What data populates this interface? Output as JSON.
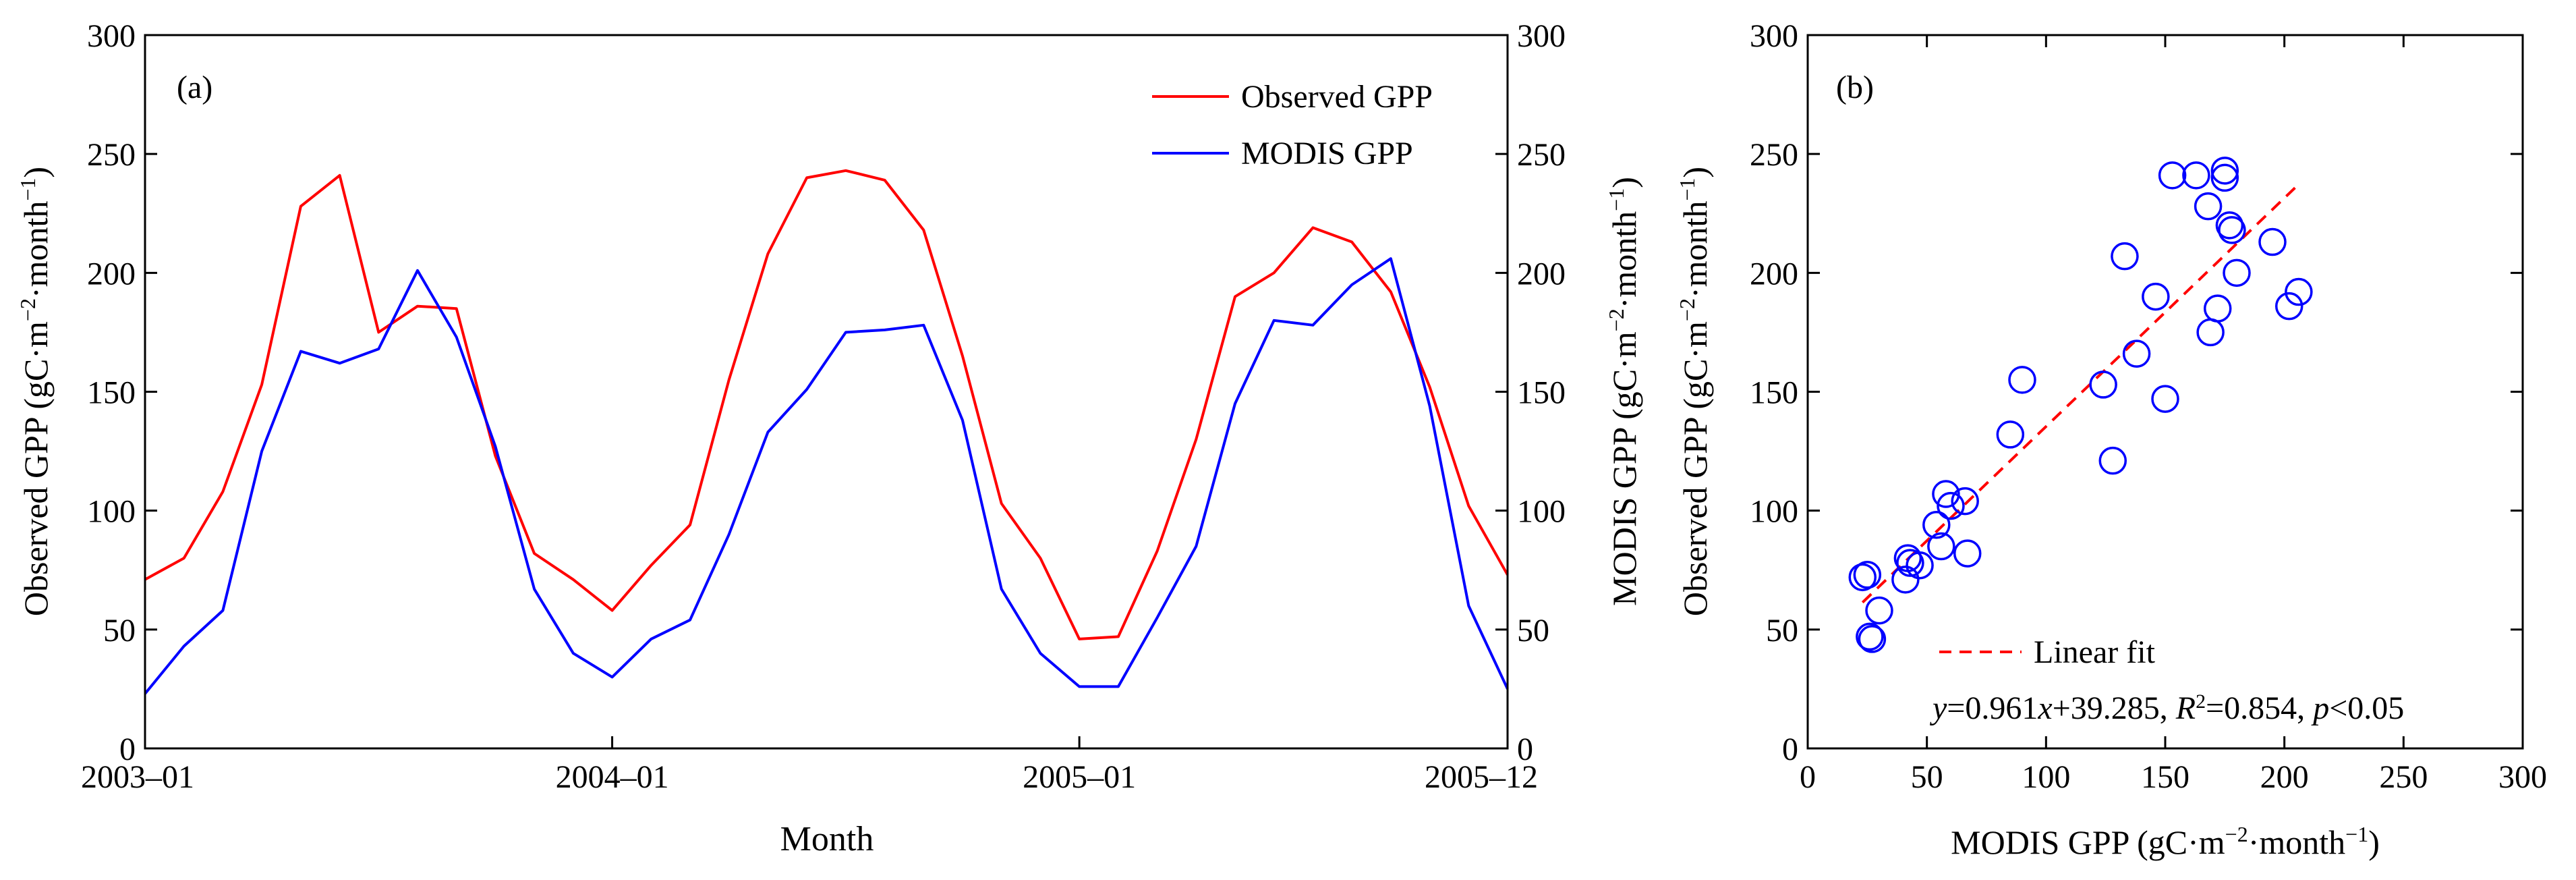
{
  "chart_data": [
    {
      "type": "line",
      "panel_label": "(a)",
      "xlabel": "Month",
      "ylabel_left": {
        "main": "Observed GPP (gC·m",
        "exp1": "−2",
        "mid": "·month",
        "exp2": "−1",
        "end": ")"
      },
      "ylabel_right": {
        "main": "MODIS GPP (gC·m",
        "exp1": "−2",
        "mid": "·month",
        "exp2": "−1",
        "end": ")"
      },
      "ylim": [
        0,
        300
      ],
      "yticks": [
        0,
        50,
        100,
        150,
        200,
        250,
        300
      ],
      "xticks": [
        {
          "index": 0,
          "label": "2003–01"
        },
        {
          "index": 12,
          "label": "2004–01"
        },
        {
          "index": 24,
          "label": "2005–01"
        },
        {
          "index": 35,
          "label": "2005–12"
        }
      ],
      "legend_position": "top-right",
      "series": [
        {
          "name": "Observed GPP",
          "color": "#ff0000",
          "values": [
            71,
            80,
            108,
            153,
            228,
            241,
            175,
            186,
            185,
            123,
            82,
            71,
            58,
            77,
            94,
            155,
            208,
            240,
            243,
            239,
            218,
            165,
            103,
            80,
            46,
            47,
            83,
            130,
            190,
            200,
            219,
            213,
            192,
            152,
            102,
            73
          ]
        },
        {
          "name": "MODIS GPP",
          "color": "#0000ff",
          "values": [
            23,
            43,
            58,
            125,
            167,
            162,
            168,
            201,
            173,
            127,
            67,
            40,
            30,
            46,
            54,
            90,
            133,
            151,
            175,
            176,
            178,
            138,
            67,
            40,
            26,
            26,
            55,
            85,
            145,
            180,
            178,
            195,
            206,
            144,
            60,
            25
          ]
        }
      ]
    },
    {
      "type": "scatter",
      "panel_label": "(b)",
      "xlabel": {
        "main": "MODIS GPP (gC·m",
        "exp1": "−2",
        "mid": "·month",
        "exp2": "−1",
        "end": ")"
      },
      "ylabel": {
        "main": "Observed GPP (gC·m",
        "exp1": "−2",
        "mid": "·month",
        "exp2": "−1",
        "end": ")"
      },
      "xlim": [
        0,
        300
      ],
      "ylim": [
        0,
        300
      ],
      "xticks": [
        0,
        50,
        100,
        150,
        200,
        250,
        300
      ],
      "yticks": [
        0,
        50,
        100,
        150,
        200,
        250,
        300
      ],
      "marker_color": "#0000ff",
      "points": [
        [
          23,
          72
        ],
        [
          25,
          73
        ],
        [
          26,
          47
        ],
        [
          27,
          46
        ],
        [
          30,
          58
        ],
        [
          41,
          71
        ],
        [
          42,
          80
        ],
        [
          43,
          78
        ],
        [
          47,
          77
        ],
        [
          54,
          94
        ],
        [
          56,
          85
        ],
        [
          58,
          107
        ],
        [
          60,
          102
        ],
        [
          66,
          104
        ],
        [
          67,
          82
        ],
        [
          85,
          132
        ],
        [
          90,
          155
        ],
        [
          124,
          153
        ],
        [
          128,
          121
        ],
        [
          133,
          207
        ],
        [
          138,
          166
        ],
        [
          146,
          190
        ],
        [
          150,
          147
        ],
        [
          153,
          241
        ],
        [
          163,
          241
        ],
        [
          168,
          228
        ],
        [
          169,
          175
        ],
        [
          172,
          185
        ],
        [
          175,
          243
        ],
        [
          175,
          240
        ],
        [
          177,
          220
        ],
        [
          178,
          218
        ],
        [
          180,
          200
        ],
        [
          195,
          213
        ],
        [
          202,
          186
        ],
        [
          206,
          192
        ]
      ],
      "fit": {
        "slope": 0.961,
        "intercept": 39.285,
        "x_range": [
          23,
          206
        ],
        "color": "#ff0000",
        "label": "Linear fit"
      },
      "equation": {
        "y": "y",
        "eq": "=0.961",
        "x": "x",
        "rest": "+39.285, ",
        "r": "R",
        "r_exp": "2",
        "r_val": "=0.854, ",
        "p": "p",
        "p_val": "<0.05"
      }
    }
  ]
}
